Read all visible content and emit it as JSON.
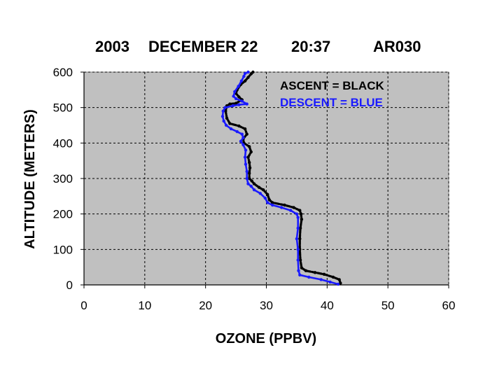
{
  "chart_data": {
    "type": "line",
    "title_parts": {
      "year": "2003",
      "date": "DECEMBER 22",
      "time": "20:37",
      "id": "AR030"
    },
    "xlabel": "OZONE (PPBV)",
    "ylabel": "ALTITUDE (METERS)",
    "xlim": [
      0,
      60
    ],
    "ylim": [
      0,
      600
    ],
    "x_ticks": [
      0,
      10,
      20,
      30,
      40,
      50,
      60
    ],
    "y_ticks": [
      0,
      100,
      200,
      300,
      400,
      500,
      600
    ],
    "grid": true,
    "plot_background": "#c0c0c0",
    "legend_placement": "top-right",
    "legend": [
      {
        "text": "ASCENT   = BLACK",
        "color": "#000000"
      },
      {
        "text": "DESCENT = BLUE",
        "color": "#1a1aff"
      }
    ],
    "series": [
      {
        "name": "ASCENT",
        "color": "#000000",
        "points": [
          [
            42.2,
            5
          ],
          [
            42.0,
            15
          ],
          [
            41.0,
            22
          ],
          [
            39.5,
            30
          ],
          [
            38.0,
            35
          ],
          [
            36.5,
            40
          ],
          [
            35.8,
            48
          ],
          [
            35.6,
            70
          ],
          [
            35.5,
            100
          ],
          [
            35.5,
            130
          ],
          [
            35.6,
            160
          ],
          [
            35.8,
            185
          ],
          [
            35.7,
            200
          ],
          [
            35.5,
            210
          ],
          [
            34.5,
            218
          ],
          [
            33.0,
            225
          ],
          [
            31.0,
            232
          ],
          [
            30.5,
            240
          ],
          [
            30.2,
            255
          ],
          [
            29.5,
            268
          ],
          [
            28.8,
            275
          ],
          [
            28.0,
            285
          ],
          [
            27.6,
            293
          ],
          [
            27.2,
            300
          ],
          [
            27.2,
            315
          ],
          [
            27.3,
            330
          ],
          [
            27.2,
            345
          ],
          [
            27.0,
            360
          ],
          [
            27.5,
            375
          ],
          [
            27.2,
            390
          ],
          [
            26.3,
            400
          ],
          [
            26.2,
            412
          ],
          [
            26.8,
            425
          ],
          [
            26.5,
            440
          ],
          [
            25.5,
            448
          ],
          [
            24.0,
            455
          ],
          [
            23.5,
            470
          ],
          [
            23.3,
            490
          ],
          [
            23.5,
            505
          ],
          [
            24.0,
            510
          ],
          [
            25.0,
            512
          ],
          [
            26.0,
            522
          ],
          [
            25.5,
            530
          ],
          [
            25.0,
            540
          ],
          [
            25.2,
            550
          ],
          [
            25.8,
            565
          ],
          [
            26.5,
            575
          ],
          [
            27.0,
            585
          ],
          [
            27.5,
            595
          ],
          [
            27.8,
            600
          ]
        ]
      },
      {
        "name": "DESCENT",
        "color": "#1a1aff",
        "points": [
          [
            41.8,
            2
          ],
          [
            40.5,
            8
          ],
          [
            39.0,
            15
          ],
          [
            37.0,
            22
          ],
          [
            35.5,
            28
          ],
          [
            35.3,
            40
          ],
          [
            35.2,
            70
          ],
          [
            35.2,
            100
          ],
          [
            35.0,
            130
          ],
          [
            35.2,
            160
          ],
          [
            35.2,
            190
          ],
          [
            35.0,
            200
          ],
          [
            34.0,
            210
          ],
          [
            32.5,
            218
          ],
          [
            31.0,
            225
          ],
          [
            30.2,
            232
          ],
          [
            29.8,
            245
          ],
          [
            29.0,
            258
          ],
          [
            28.0,
            268
          ],
          [
            27.5,
            278
          ],
          [
            27.0,
            285
          ],
          [
            26.8,
            300
          ],
          [
            26.8,
            320
          ],
          [
            26.6,
            340
          ],
          [
            26.5,
            360
          ],
          [
            26.6,
            380
          ],
          [
            26.2,
            395
          ],
          [
            25.8,
            405
          ],
          [
            26.2,
            415
          ],
          [
            26.0,
            425
          ],
          [
            25.2,
            432
          ],
          [
            24.2,
            440
          ],
          [
            23.4,
            450
          ],
          [
            23.0,
            462
          ],
          [
            22.8,
            475
          ],
          [
            22.9,
            490
          ],
          [
            23.2,
            500
          ],
          [
            24.5,
            505
          ],
          [
            25.5,
            508
          ],
          [
            26.8,
            510
          ],
          [
            26.0,
            518
          ],
          [
            25.0,
            525
          ],
          [
            24.6,
            532
          ],
          [
            24.8,
            545
          ],
          [
            25.4,
            560
          ],
          [
            25.9,
            575
          ],
          [
            26.3,
            588
          ],
          [
            26.5,
            596
          ],
          [
            27.0,
            600
          ]
        ]
      }
    ]
  }
}
